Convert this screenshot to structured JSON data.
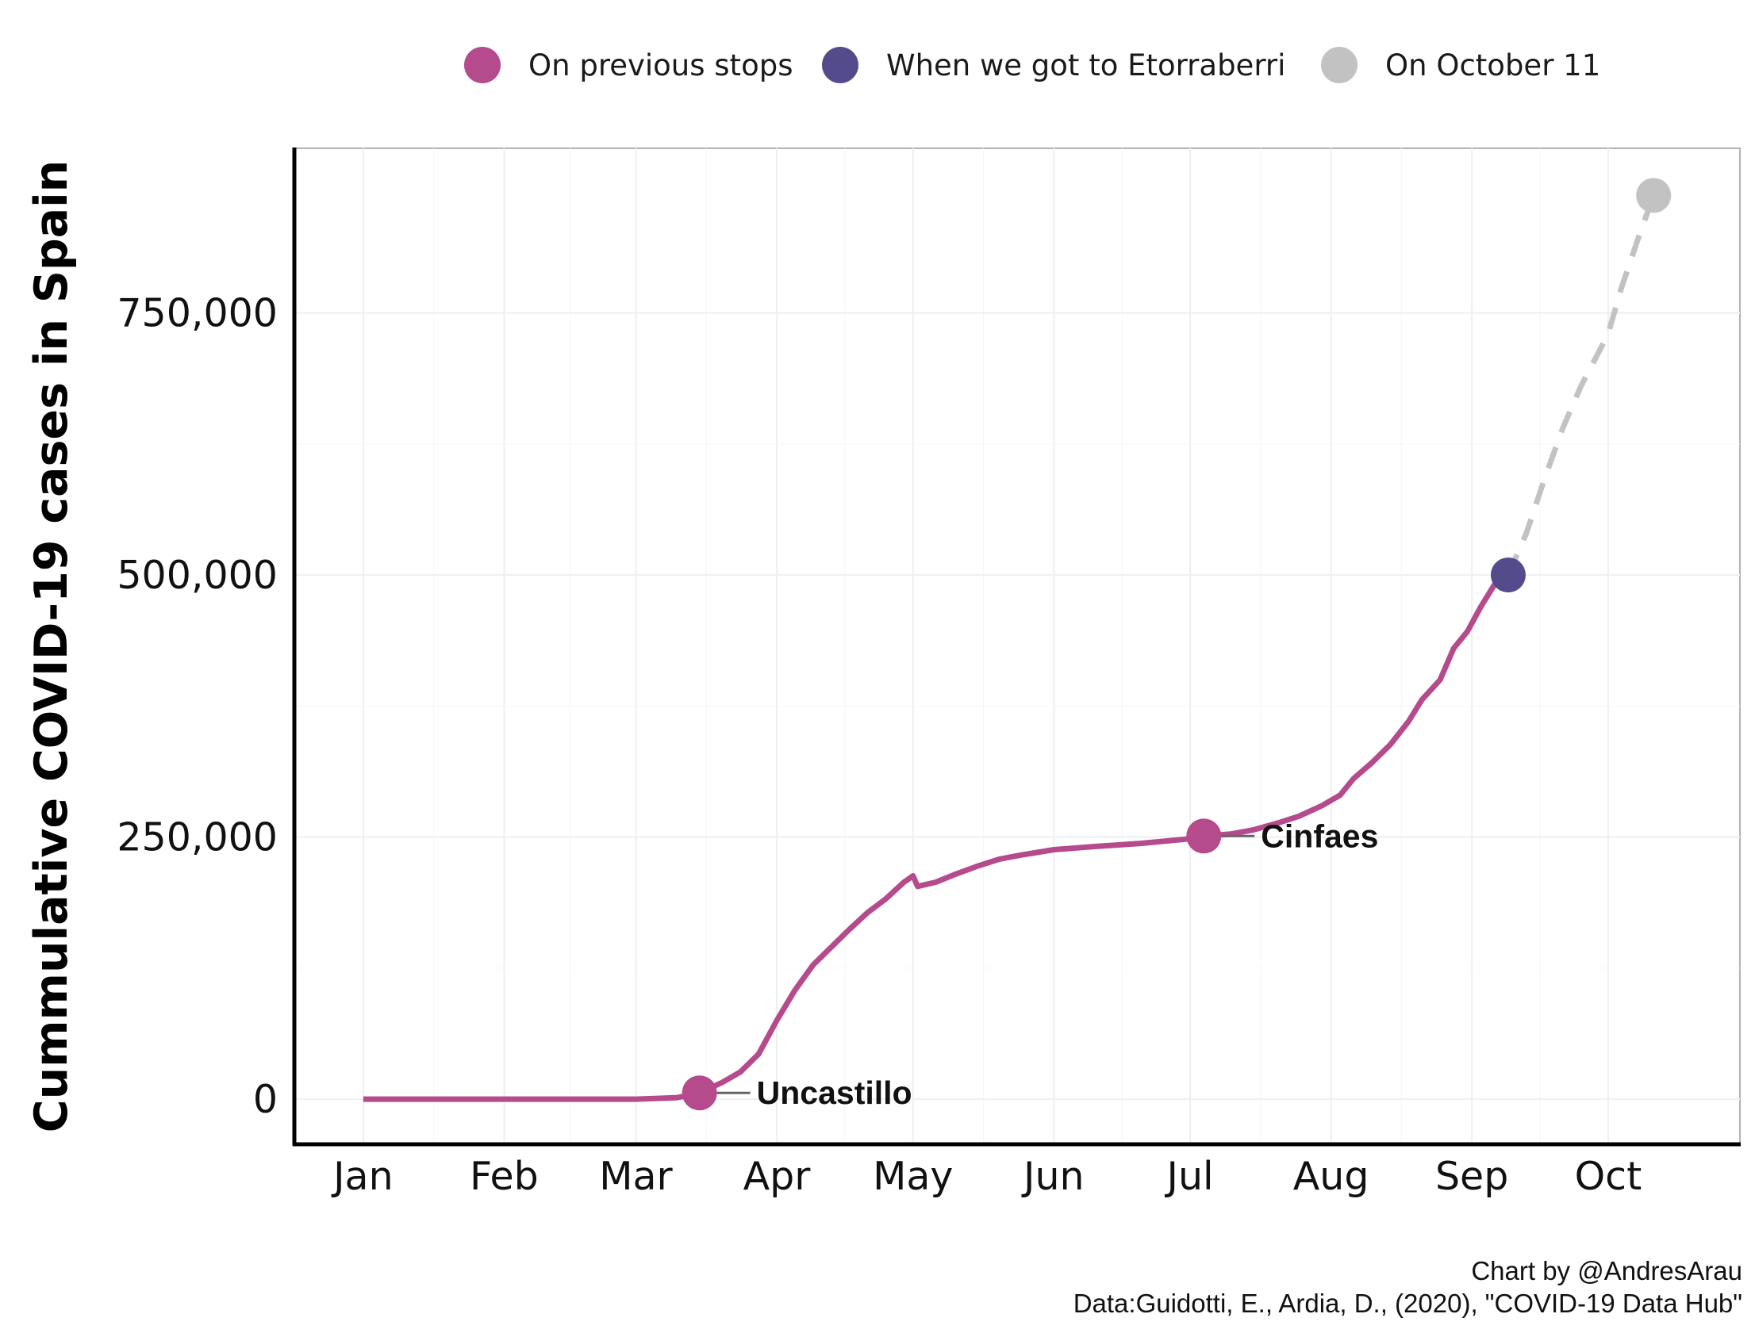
{
  "chart_data": {
    "type": "line",
    "ylabel": "Cummulative COVID-19 cases in Spain",
    "xlabel": "",
    "x_ticks": [
      {
        "label": "Jan",
        "date": "2020-01-01"
      },
      {
        "label": "Feb",
        "date": "2020-02-01"
      },
      {
        "label": "Mar",
        "date": "2020-03-01"
      },
      {
        "label": "Apr",
        "date": "2020-04-01"
      },
      {
        "label": "May",
        "date": "2020-05-01"
      },
      {
        "label": "Jun",
        "date": "2020-06-01"
      },
      {
        "label": "Jul",
        "date": "2020-07-01"
      },
      {
        "label": "Aug",
        "date": "2020-08-01"
      },
      {
        "label": "Sep",
        "date": "2020-09-01"
      },
      {
        "label": "Oct",
        "date": "2020-10-01"
      }
    ],
    "y_ticks": [
      {
        "label": "0",
        "value": 0
      },
      {
        "label": "250,000",
        "value": 250000
      },
      {
        "label": "500,000",
        "value": 500000
      },
      {
        "label": "750,000",
        "value": 750000
      }
    ],
    "xlim": [
      "2019-12-17",
      "2020-10-30"
    ],
    "ylim": [
      -43000,
      907000
    ],
    "grid": true,
    "legend_position": "top",
    "legend": [
      {
        "label": "On previous stops",
        "color": "#b54a8c"
      },
      {
        "label": "When we got to Etorraberri",
        "color": "#534b8c"
      },
      {
        "label": "On October 11",
        "color": "#c2c2c2"
      }
    ],
    "series": [
      {
        "color": "#b54a8c",
        "style": "solid",
        "points": [
          [
            "2020-01-01",
            0
          ],
          [
            "2020-02-01",
            0
          ],
          [
            "2020-03-01",
            0
          ],
          [
            "2020-03-10",
            1500
          ],
          [
            "2020-03-13",
            4000
          ],
          [
            "2020-03-16",
            8000
          ],
          [
            "2020-03-20",
            16000
          ],
          [
            "2020-03-24",
            26000
          ],
          [
            "2020-03-28",
            43000
          ],
          [
            "2020-04-01",
            75000
          ],
          [
            "2020-04-05",
            104000
          ],
          [
            "2020-04-09",
            128000
          ],
          [
            "2020-04-13",
            145000
          ],
          [
            "2020-04-17",
            162000
          ],
          [
            "2020-04-21",
            178000
          ],
          [
            "2020-04-25",
            191000
          ],
          [
            "2020-04-29",
            207000
          ],
          [
            "2020-05-01",
            213000
          ],
          [
            "2020-05-02",
            203000
          ],
          [
            "2020-05-06",
            207000
          ],
          [
            "2020-05-10",
            214000
          ],
          [
            "2020-05-15",
            222000
          ],
          [
            "2020-05-20",
            229000
          ],
          [
            "2020-05-25",
            233000
          ],
          [
            "2020-06-01",
            238000
          ],
          [
            "2020-06-10",
            241000
          ],
          [
            "2020-06-20",
            244000
          ],
          [
            "2020-06-30",
            248000
          ],
          [
            "2020-07-04",
            251000
          ],
          [
            "2020-07-10",
            253000
          ],
          [
            "2020-07-15",
            257000
          ],
          [
            "2020-07-20",
            263000
          ],
          [
            "2020-07-25",
            270000
          ],
          [
            "2020-07-30",
            280000
          ],
          [
            "2020-08-03",
            290000
          ],
          [
            "2020-08-06",
            306000
          ],
          [
            "2020-08-10",
            321000
          ],
          [
            "2020-08-14",
            338000
          ],
          [
            "2020-08-18",
            360000
          ],
          [
            "2020-08-21",
            381000
          ],
          [
            "2020-08-25",
            400000
          ],
          [
            "2020-08-28",
            430000
          ],
          [
            "2020-08-31",
            446000
          ],
          [
            "2020-09-03",
            470000
          ],
          [
            "2020-09-06",
            491000
          ],
          [
            "2020-09-09",
            500000
          ]
        ]
      },
      {
        "color": "#c2c2c2",
        "style": "dashed",
        "points": [
          [
            "2020-09-09",
            500000
          ],
          [
            "2020-09-13",
            540000
          ],
          [
            "2020-09-17",
            592000
          ],
          [
            "2020-09-21",
            640000
          ],
          [
            "2020-09-25",
            680000
          ],
          [
            "2020-09-28",
            705000
          ],
          [
            "2020-10-01",
            730000
          ],
          [
            "2020-10-04",
            775000
          ],
          [
            "2020-10-08",
            826000
          ],
          [
            "2020-10-11",
            862000
          ]
        ]
      }
    ],
    "markers": [
      {
        "date": "2020-03-15",
        "value": 6000,
        "color": "#b54a8c",
        "label": "Uncastillo"
      },
      {
        "date": "2020-07-04",
        "value": 251000,
        "color": "#b54a8c",
        "label": "Cinfaes"
      },
      {
        "date": "2020-09-09",
        "value": 500000,
        "color": "#534b8c",
        "label": ""
      },
      {
        "date": "2020-10-11",
        "value": 862000,
        "color": "#c2c2c2",
        "label": ""
      }
    ],
    "caption": [
      "Chart by @AndresArau",
      "Data:Guidotti, E., Ardia, D., (2020), \"COVID-19 Data Hub\""
    ]
  }
}
